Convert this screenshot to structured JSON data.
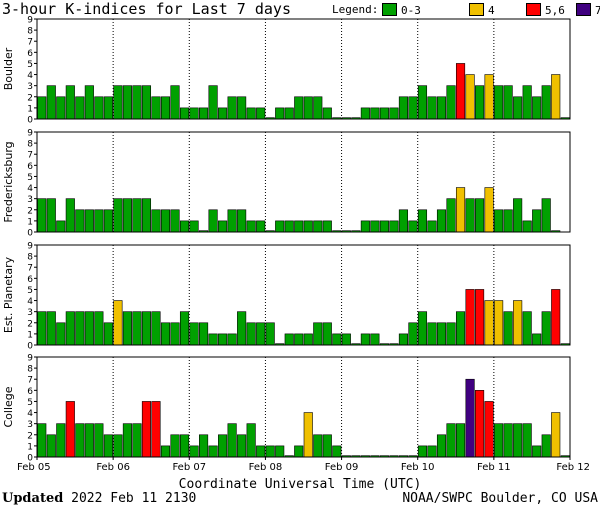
{
  "header": {
    "title": "3-hour K-indices for Last 7 days",
    "legend_label": "Legend:",
    "legend": [
      {
        "label": "0-3",
        "color": "#00a000"
      },
      {
        "label": "4",
        "color": "#f0c000"
      },
      {
        "label": "5,6",
        "color": "#ff0000"
      },
      {
        "label": "7-9",
        "color": "#400080"
      }
    ]
  },
  "footer": {
    "updated_label": "Updated",
    "updated_value": "2022 Feb 11 2130",
    "credit": "NOAA/SWPC Boulder, CO USA"
  },
  "chart_data": {
    "type": "bar",
    "title": "3-hour K-indices for Last 7 days",
    "xlabel": "Coordinate Universal Time (UTC)",
    "x_ticks": [
      "Feb 05",
      "Feb 06",
      "Feb 07",
      "Feb 08",
      "Feb 09",
      "Feb 10",
      "Feb 11",
      "Feb 12"
    ],
    "ylim": [
      0,
      9
    ],
    "y_ticks": [
      0,
      1,
      2,
      3,
      4,
      5,
      6,
      7,
      8,
      9
    ],
    "bins_per_day": 8,
    "color_scale": [
      {
        "range": "0-3",
        "color": "#00a000"
      },
      {
        "range": "4",
        "color": "#f0c000"
      },
      {
        "range": "5,6",
        "color": "#ff0000"
      },
      {
        "range": "7-9",
        "color": "#400080"
      }
    ],
    "panels": [
      {
        "name": "Boulder",
        "values": [
          2,
          3,
          2,
          3,
          2,
          3,
          2,
          2,
          3,
          3,
          3,
          3,
          2,
          2,
          3,
          1,
          1,
          1,
          3,
          1,
          2,
          2,
          1,
          1,
          0,
          1,
          1,
          2,
          2,
          2,
          1,
          0,
          0,
          0,
          1,
          1,
          1,
          1,
          2,
          2,
          3,
          2,
          2,
          3,
          5,
          4,
          3,
          4,
          3,
          3,
          2,
          3,
          2,
          3,
          4,
          0
        ]
      },
      {
        "name": "Fredericksburg",
        "values": [
          3,
          3,
          1,
          3,
          2,
          2,
          2,
          2,
          3,
          3,
          3,
          3,
          2,
          2,
          2,
          1,
          1,
          0,
          2,
          1,
          2,
          2,
          1,
          1,
          0,
          1,
          1,
          1,
          1,
          1,
          1,
          0,
          0,
          0,
          1,
          1,
          1,
          1,
          2,
          1,
          2,
          1,
          2,
          3,
          4,
          3,
          3,
          4,
          2,
          2,
          3,
          1,
          2,
          3,
          0
        ]
      },
      {
        "name": "Est. Planetary",
        "values": [
          3,
          3,
          2,
          3,
          3,
          3,
          3,
          2,
          4,
          3,
          3,
          3,
          3,
          2,
          2,
          3,
          2,
          2,
          1,
          1,
          1,
          3,
          2,
          2,
          2,
          0,
          1,
          1,
          1,
          2,
          2,
          1,
          1,
          0,
          1,
          1,
          0,
          0,
          1,
          2,
          3,
          2,
          2,
          2,
          3,
          5,
          5,
          4,
          4,
          3,
          4,
          3,
          1,
          3,
          5,
          0
        ]
      },
      {
        "name": "College",
        "values": [
          3,
          2,
          3,
          5,
          3,
          3,
          3,
          2,
          2,
          3,
          3,
          5,
          5,
          1,
          2,
          2,
          1,
          2,
          1,
          2,
          3,
          2,
          3,
          1,
          1,
          1,
          0,
          1,
          4,
          2,
          2,
          1,
          0,
          0,
          0,
          0,
          0,
          0,
          0,
          0,
          1,
          1,
          2,
          3,
          3,
          7,
          6,
          5,
          3,
          3,
          3,
          3,
          1,
          2,
          4,
          0
        ]
      }
    ]
  }
}
